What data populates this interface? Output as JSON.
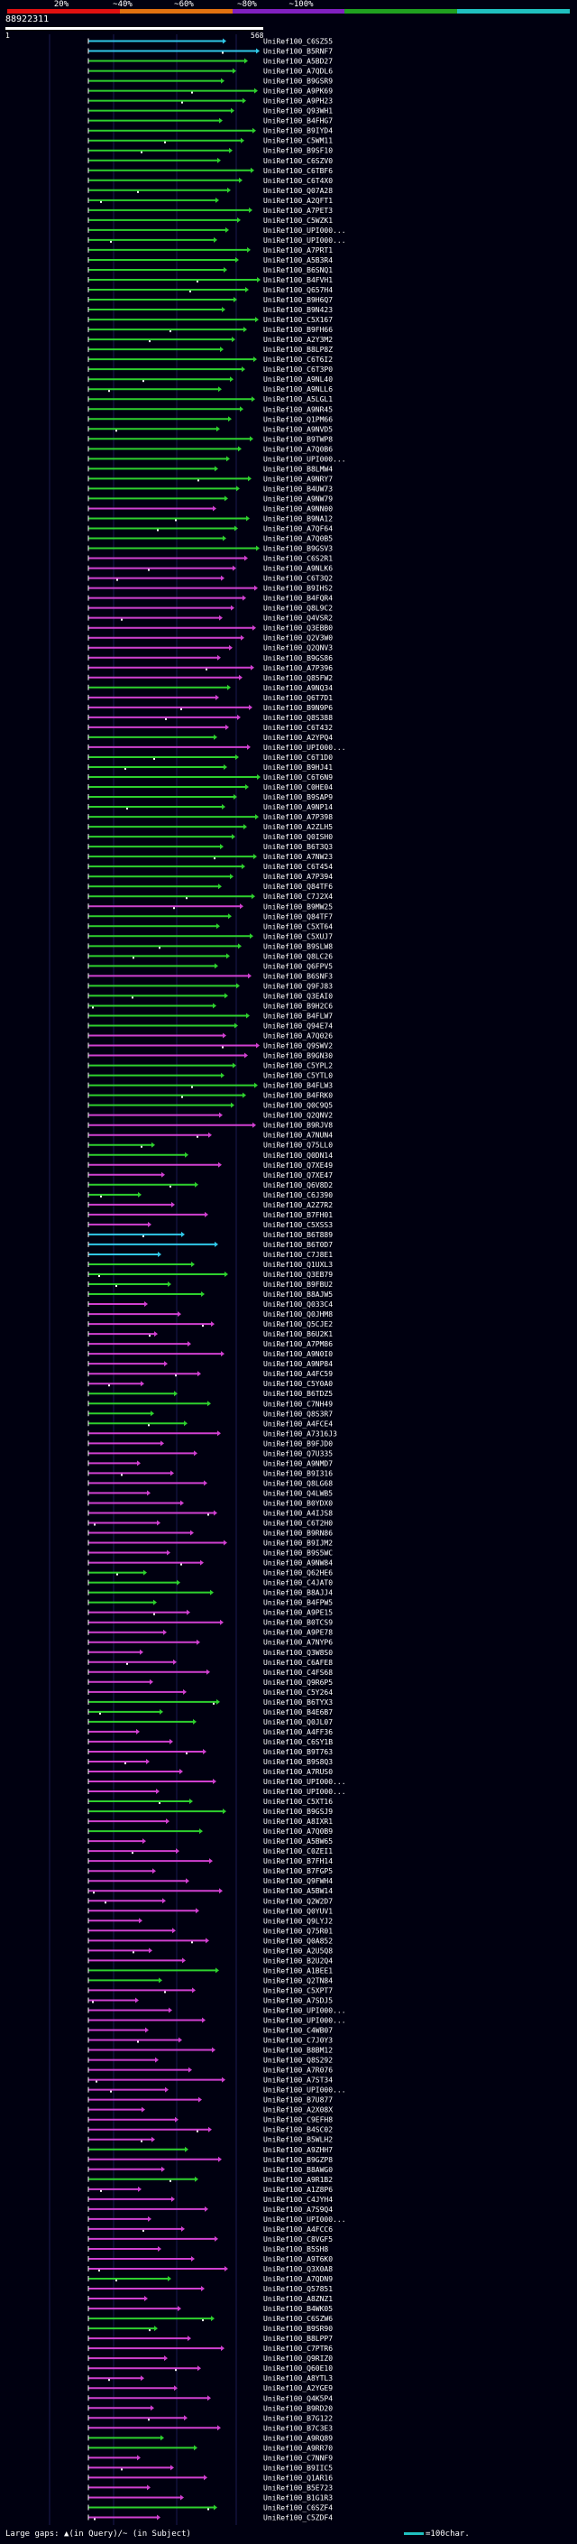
{
  "scale": {
    "labels": [
      "20%",
      "~40%",
      "~60%",
      "~80%",
      "~100%"
    ],
    "colors": [
      "#e01010",
      "#e07010",
      "#8020c0",
      "#20a020",
      "#20c0c0"
    ]
  },
  "query": {
    "id": "88922311",
    "start": "1",
    "end": "568"
  },
  "hit_colors": {
    "g": "#2ed02e",
    "m": "#d040d0",
    "c": "#30c8e8"
  },
  "hits": [
    {
      "label": "UniRef100_C6SZ55",
      "c": "c"
    },
    {
      "label": "UniRef100_B5RNF7",
      "c": "c"
    },
    {
      "label": "UniRef100_A5BD27",
      "c": "g"
    },
    {
      "label": "UniRef100_A7QDL6",
      "c": "g"
    },
    {
      "label": "UniRef100_B9GSR9",
      "c": "g"
    },
    {
      "label": "UniRef100_A9PK69",
      "c": "g"
    },
    {
      "label": "UniRef100_A9PH23",
      "c": "g"
    },
    {
      "label": "UniRef100_Q93WH1",
      "c": "g"
    },
    {
      "label": "UniRef100_B4FHG7",
      "c": "g"
    },
    {
      "label": "UniRef100_B9IYD4",
      "c": "g"
    },
    {
      "label": "UniRef100_C5WM11",
      "c": "g"
    },
    {
      "label": "UniRef100_B9SF10",
      "c": "g"
    },
    {
      "label": "UniRef100_C6SZV0",
      "c": "g"
    },
    {
      "label": "UniRef100_C6TBF6",
      "c": "g"
    },
    {
      "label": "UniRef100_C6T4X0",
      "c": "g"
    },
    {
      "label": "UniRef100_Q07A28",
      "c": "g"
    },
    {
      "label": "UniRef100_A2QFT1",
      "c": "g"
    },
    {
      "label": "UniRef100_A7PET3",
      "c": "g"
    },
    {
      "label": "UniRef100_C5WZK1",
      "c": "g"
    },
    {
      "label": "UniRef100_UPI000...",
      "c": "g"
    },
    {
      "label": "UniRef100_UPI000...",
      "c": "g"
    },
    {
      "label": "UniRef100_A7PRT1",
      "c": "g"
    },
    {
      "label": "UniRef100_A5B3R4",
      "c": "g"
    },
    {
      "label": "UniRef100_B6SNQ1",
      "c": "g"
    },
    {
      "label": "UniRef100_B4FVH1",
      "c": "g"
    },
    {
      "label": "UniRef100_Q657H4",
      "c": "g"
    },
    {
      "label": "UniRef100_B9H6Q7",
      "c": "g"
    },
    {
      "label": "UniRef100_B9N423",
      "c": "g"
    },
    {
      "label": "UniRef100_C5X167",
      "c": "g"
    },
    {
      "label": "UniRef100_B9FH66",
      "c": "g"
    },
    {
      "label": "UniRef100_A2Y3M2",
      "c": "g"
    },
    {
      "label": "UniRef100_B8LP8Z",
      "c": "g"
    },
    {
      "label": "UniRef100_C6T6I2",
      "c": "g"
    },
    {
      "label": "UniRef100_C6T3P0",
      "c": "g"
    },
    {
      "label": "UniRef100_A9NL40",
      "c": "g"
    },
    {
      "label": "UniRef100_A9NLL6",
      "c": "g"
    },
    {
      "label": "UniRef100_A5LGL1",
      "c": "g"
    },
    {
      "label": "UniRef100_A9NR45",
      "c": "g"
    },
    {
      "label": "UniRef100_Q1PM66",
      "c": "g"
    },
    {
      "label": "UniRef100_A9NVD5",
      "c": "g"
    },
    {
      "label": "UniRef100_B9TWP8",
      "c": "g"
    },
    {
      "label": "UniRef100_A7Q0B6",
      "c": "g"
    },
    {
      "label": "UniRef100_UPI000...",
      "c": "g"
    },
    {
      "label": "UniRef100_B8LMW4",
      "c": "g"
    },
    {
      "label": "UniRef100_A9NRY7",
      "c": "g"
    },
    {
      "label": "UniRef100_B4UW73",
      "c": "g"
    },
    {
      "label": "UniRef100_A9NW79",
      "c": "g"
    },
    {
      "label": "UniRef100_A9NN00",
      "c": "m"
    },
    {
      "label": "UniRef100_B9NA12",
      "c": "g"
    },
    {
      "label": "UniRef100_A7QF64",
      "c": "g"
    },
    {
      "label": "UniRef100_A7Q0B5",
      "c": "g"
    },
    {
      "label": "UniRef100_B9GSV3",
      "c": "g"
    },
    {
      "label": "UniRef100_C6S2R1",
      "c": "m"
    },
    {
      "label": "UniRef100_A9NLK6",
      "c": "m"
    },
    {
      "label": "UniRef100_C6T3Q2",
      "c": "m"
    },
    {
      "label": "UniRef100_B9IHS2",
      "c": "m"
    },
    {
      "label": "UniRef100_B4FQR4",
      "c": "m"
    },
    {
      "label": "UniRef100_Q8L9C2",
      "c": "m"
    },
    {
      "label": "UniRef100_Q4VSR2",
      "c": "m"
    },
    {
      "label": "UniRef100_Q3EBB0",
      "c": "m"
    },
    {
      "label": "UniRef100_Q2V3W0",
      "c": "m"
    },
    {
      "label": "UniRef100_Q2QNV3",
      "c": "m"
    },
    {
      "label": "UniRef100_B9GS86",
      "c": "m"
    },
    {
      "label": "UniRef100_A7P396",
      "c": "m"
    },
    {
      "label": "UniRef100_Q85FW2",
      "c": "m"
    },
    {
      "label": "UniRef100_A9NQ34",
      "c": "g"
    },
    {
      "label": "UniRef100_Q6T7D1",
      "c": "m"
    },
    {
      "label": "UniRef100_B9N9P6",
      "c": "m"
    },
    {
      "label": "UniRef100_Q8S388",
      "c": "m"
    },
    {
      "label": "UniRef100_C6T432",
      "c": "m"
    },
    {
      "label": "UniRef100_A2YPQ4",
      "c": "g"
    },
    {
      "label": "UniRef100_UPI000...",
      "c": "m"
    },
    {
      "label": "UniRef100_C6T1D0",
      "c": "g"
    },
    {
      "label": "UniRef100_B9HJ41",
      "c": "g"
    },
    {
      "label": "UniRef100_C6T6N9",
      "c": "g"
    },
    {
      "label": "UniRef100_C0HE04",
      "c": "g"
    },
    {
      "label": "UniRef100_B9SAP9",
      "c": "g"
    },
    {
      "label": "UniRef100_A9NP14",
      "c": "g"
    },
    {
      "label": "UniRef100_A7P398",
      "c": "g"
    },
    {
      "label": "UniRef100_A2ZLH5",
      "c": "g"
    },
    {
      "label": "UniRef100_Q0ISH0",
      "c": "g"
    },
    {
      "label": "UniRef100_B6T3Q3",
      "c": "g"
    },
    {
      "label": "UniRef100_A7NW23",
      "c": "g"
    },
    {
      "label": "UniRef100_C6T454",
      "c": "g"
    },
    {
      "label": "UniRef100_A7P394",
      "c": "g"
    },
    {
      "label": "UniRef100_Q84TF6",
      "c": "g"
    },
    {
      "label": "UniRef100_C7J2X4",
      "c": "g"
    },
    {
      "label": "UniRef100_B9MW25",
      "c": "m"
    },
    {
      "label": "UniRef100_Q84TF7",
      "c": "g"
    },
    {
      "label": "UniRef100_C5XT64",
      "c": "g"
    },
    {
      "label": "UniRef100_C5XUJ7",
      "c": "g"
    },
    {
      "label": "UniRef100_B9SLW8",
      "c": "g"
    },
    {
      "label": "UniRef100_Q8LC26",
      "c": "g"
    },
    {
      "label": "UniRef100_Q6FPV5",
      "c": "g"
    },
    {
      "label": "UniRef100_B6SNF3",
      "c": "m"
    },
    {
      "label": "UniRef100_Q9FJ83",
      "c": "g"
    },
    {
      "label": "UniRef100_Q3EAI0",
      "c": "g"
    },
    {
      "label": "UniRef100_B9H2C6",
      "c": "g"
    },
    {
      "label": "UniRef100_B4FLW7",
      "c": "g"
    },
    {
      "label": "UniRef100_Q94E74",
      "c": "g"
    },
    {
      "label": "UniRef100_A7Q026",
      "c": "m"
    },
    {
      "label": "UniRef100_Q9SWV2",
      "c": "m"
    },
    {
      "label": "UniRef100_B9GN30",
      "c": "m"
    },
    {
      "label": "UniRef100_C5YPL2",
      "c": "g"
    },
    {
      "label": "UniRef100_C5YTL0",
      "c": "g"
    },
    {
      "label": "UniRef100_B4FLW3",
      "c": "g"
    },
    {
      "label": "UniRef100_B4FRK0",
      "c": "g"
    },
    {
      "label": "UniRef100_Q0C9Q5",
      "c": "g"
    },
    {
      "label": "UniRef100_Q2QNV2",
      "c": "m"
    },
    {
      "label": "UniRef100_B9RJV8",
      "c": "m"
    },
    {
      "label": "UniRef100_A7NUN4",
      "c": "m"
    },
    {
      "label": "UniRef100_Q75LL0",
      "c": "g"
    },
    {
      "label": "UniRef100_Q0DN14",
      "c": "g"
    },
    {
      "label": "UniRef100_Q7XE49",
      "c": "m"
    },
    {
      "label": "UniRef100_Q7XE47",
      "c": "m"
    },
    {
      "label": "UniRef100_Q6V8D2",
      "c": "g"
    },
    {
      "label": "UniRef100_C6J390",
      "c": "g"
    },
    {
      "label": "UniRef100_A2Z7R2",
      "c": "m"
    },
    {
      "label": "UniRef100_B7FH01",
      "c": "m"
    },
    {
      "label": "UniRef100_C5XSS3",
      "c": "m"
    },
    {
      "label": "UniRef100_B6T889",
      "c": "c"
    },
    {
      "label": "UniRef100_B6T0D7",
      "c": "c"
    },
    {
      "label": "UniRef100_C7J8E1",
      "c": "c"
    },
    {
      "label": "UniRef100_Q1UXL3",
      "c": "g"
    },
    {
      "label": "UniRef100_Q3EB79",
      "c": "g"
    },
    {
      "label": "UniRef100_B9FBU2",
      "c": "g"
    },
    {
      "label": "UniRef100_B8AJW5",
      "c": "g"
    },
    {
      "label": "UniRef100_Q033C4",
      "c": "m"
    },
    {
      "label": "UniRef100_Q0JHM8",
      "c": "m"
    },
    {
      "label": "UniRef100_Q5CJE2",
      "c": "m"
    },
    {
      "label": "UniRef100_B6U2K1",
      "c": "m"
    },
    {
      "label": "UniRef100_A7PM86",
      "c": "m"
    },
    {
      "label": "UniRef100_A9N0I0",
      "c": "m"
    },
    {
      "label": "UniRef100_A9NP84",
      "c": "m"
    },
    {
      "label": "UniRef100_A4FC59",
      "c": "m"
    },
    {
      "label": "UniRef100_C5Y0A0",
      "c": "m"
    },
    {
      "label": "UniRef100_B6TDZ5",
      "c": "g"
    },
    {
      "label": "UniRef100_C7NH49",
      "c": "g"
    },
    {
      "label": "UniRef100_Q8S3R7",
      "c": "g"
    },
    {
      "label": "UniRef100_A4FCE4",
      "c": "g"
    },
    {
      "label": "UniRef100_A7316J3",
      "c": "m"
    },
    {
      "label": "UniRef100_B9FJD0",
      "c": "m"
    },
    {
      "label": "UniRef100_Q7U335",
      "c": "m"
    },
    {
      "label": "UniRef100_A9NMD7",
      "c": "m"
    },
    {
      "label": "UniRef100_B9I316",
      "c": "m"
    },
    {
      "label": "UniRef100_Q8LG68",
      "c": "m"
    },
    {
      "label": "UniRef100_Q4LWB5",
      "c": "m"
    },
    {
      "label": "UniRef100_B0YDX0",
      "c": "m"
    },
    {
      "label": "UniRef100_A4IJS8",
      "c": "m"
    },
    {
      "label": "UniRef100_C6T2H0",
      "c": "m"
    },
    {
      "label": "UniRef100_B9RN86",
      "c": "m"
    },
    {
      "label": "UniRef100_B9IJM2",
      "c": "m"
    },
    {
      "label": "UniRef100_B9S5WC",
      "c": "m"
    },
    {
      "label": "UniRef100_A9NW84",
      "c": "m"
    },
    {
      "label": "UniRef100_Q62HE6",
      "c": "g"
    },
    {
      "label": "UniRef100_C4JAT0",
      "c": "g"
    },
    {
      "label": "UniRef100_B8AJJ4",
      "c": "g"
    },
    {
      "label": "UniRef100_B4FPW5",
      "c": "g"
    },
    {
      "label": "UniRef100_A9PE15",
      "c": "m"
    },
    {
      "label": "UniRef100_B0TCS9",
      "c": "m"
    },
    {
      "label": "UniRef100_A9PE78",
      "c": "m"
    },
    {
      "label": "UniRef100_A7NYP6",
      "c": "m"
    },
    {
      "label": "UniRef100_Q3W8S0",
      "c": "m"
    },
    {
      "label": "UniRef100_C6AFE8",
      "c": "m"
    },
    {
      "label": "UniRef100_C4FS68",
      "c": "m"
    },
    {
      "label": "UniRef100_Q9R6P5",
      "c": "m"
    },
    {
      "label": "UniRef100_C5Y264",
      "c": "m"
    },
    {
      "label": "UniRef100_B6TYX3",
      "c": "g"
    },
    {
      "label": "UniRef100_B4E6B7",
      "c": "g"
    },
    {
      "label": "UniRef100_Q0JL07",
      "c": "g"
    },
    {
      "label": "UniRef100_A4FF36",
      "c": "m"
    },
    {
      "label": "UniRef100_C6SY1B",
      "c": "m"
    },
    {
      "label": "UniRef100_B9T763",
      "c": "m"
    },
    {
      "label": "UniRef100_B9S8Q3",
      "c": "m"
    },
    {
      "label": "UniRef100_A7RUS0",
      "c": "m"
    },
    {
      "label": "UniRef100_UPI000...",
      "c": "m"
    },
    {
      "label": "UniRef100_UPI000...",
      "c": "m"
    },
    {
      "label": "UniRef100_C5XT16",
      "c": "g"
    },
    {
      "label": "UniRef100_B9GSJ9",
      "c": "g"
    },
    {
      "label": "UniRef100_A8IXR1",
      "c": "m"
    },
    {
      "label": "UniRef100_A7Q0B9",
      "c": "g"
    },
    {
      "label": "UniRef100_A5BW65",
      "c": "m"
    },
    {
      "label": "UniRef100_C0ZEI1",
      "c": "m"
    },
    {
      "label": "UniRef100_B7FH14",
      "c": "m"
    },
    {
      "label": "UniRef100_B7FGP5",
      "c": "m"
    },
    {
      "label": "UniRef100_Q9FWH4",
      "c": "m"
    },
    {
      "label": "UniRef100_A5BW14",
      "c": "m"
    },
    {
      "label": "UniRef100_Q2W2D7",
      "c": "m"
    },
    {
      "label": "UniRef100_Q0YUV1",
      "c": "m"
    },
    {
      "label": "UniRef100_Q9LYJ2",
      "c": "m"
    },
    {
      "label": "UniRef100_Q75R01",
      "c": "m"
    },
    {
      "label": "UniRef100_Q0A852",
      "c": "m"
    },
    {
      "label": "UniRef100_A2U5Q8",
      "c": "m"
    },
    {
      "label": "UniRef100_B2U2Q4",
      "c": "m"
    },
    {
      "label": "UniRef100_A1BEE1",
      "c": "g"
    },
    {
      "label": "UniRef100_Q2TN84",
      "c": "g"
    },
    {
      "label": "UniRef100_C5XPT7",
      "c": "m"
    },
    {
      "label": "UniRef100_A7SDJ5",
      "c": "m"
    },
    {
      "label": "UniRef100_UPI000...",
      "c": "m"
    },
    {
      "label": "UniRef100_UPI000...",
      "c": "m"
    },
    {
      "label": "UniRef100_C4WB07",
      "c": "m"
    },
    {
      "label": "UniRef100_C7J0Y3",
      "c": "m"
    },
    {
      "label": "UniRef100_B8BM12",
      "c": "m"
    },
    {
      "label": "UniRef100_Q8S292",
      "c": "m"
    },
    {
      "label": "UniRef100_A7R076",
      "c": "m"
    },
    {
      "label": "UniRef100_A7ST34",
      "c": "m"
    },
    {
      "label": "UniRef100_UPI000...",
      "c": "m"
    },
    {
      "label": "UniRef100_B7U877",
      "c": "m"
    },
    {
      "label": "UniRef100_A2X08X",
      "c": "m"
    },
    {
      "label": "UniRef100_C9EFH8",
      "c": "m"
    },
    {
      "label": "UniRef100_B4SC02",
      "c": "m"
    },
    {
      "label": "UniRef100_B5WLH2",
      "c": "m"
    },
    {
      "label": "UniRef100_A9ZHH7",
      "c": "g"
    },
    {
      "label": "UniRef100_B9GZP8",
      "c": "m"
    },
    {
      "label": "UniRef100_B8AWG0",
      "c": "m"
    },
    {
      "label": "UniRef100_A9R1B2",
      "c": "g"
    },
    {
      "label": "UniRef100_A1Z8P6",
      "c": "m"
    },
    {
      "label": "UniRef100_C4JYH4",
      "c": "m"
    },
    {
      "label": "UniRef100_A7S9Q4",
      "c": "m"
    },
    {
      "label": "UniRef100_UPI000...",
      "c": "m"
    },
    {
      "label": "UniRef100_A4FCC6",
      "c": "m"
    },
    {
      "label": "UniRef100_C8VGF5",
      "c": "m"
    },
    {
      "label": "UniRef100_B5SH8",
      "c": "m"
    },
    {
      "label": "UniRef100_A9T6K0",
      "c": "m"
    },
    {
      "label": "UniRef100_Q3X0A8",
      "c": "m"
    },
    {
      "label": "UniRef100_A7QDN9",
      "c": "g"
    },
    {
      "label": "UniRef100_Q57851",
      "c": "m"
    },
    {
      "label": "UniRef100_A8ZNZ1",
      "c": "m"
    },
    {
      "label": "UniRef100_B4WK05",
      "c": "m"
    },
    {
      "label": "UniRef100_C6SZW6",
      "c": "g"
    },
    {
      "label": "UniRef100_B9SR90",
      "c": "g"
    },
    {
      "label": "UniRef100_B8LPP7",
      "c": "m"
    },
    {
      "label": "UniRef100_C7PTR6",
      "c": "m"
    },
    {
      "label": "UniRef100_Q9RIZ0",
      "c": "m"
    },
    {
      "label": "UniRef100_Q60E10",
      "c": "m"
    },
    {
      "label": "UniRef100_A8YTL3",
      "c": "m"
    },
    {
      "label": "UniRef100_A2YGE9",
      "c": "m"
    },
    {
      "label": "UniRef100_Q4K5P4",
      "c": "m"
    },
    {
      "label": "UniRef100_B9RD20",
      "c": "m"
    },
    {
      "label": "UniRef100_B7G122",
      "c": "m"
    },
    {
      "label": "UniRef100_B7C3E3",
      "c": "m"
    },
    {
      "label": "UniRef100_A9RQ89",
      "c": "g"
    },
    {
      "label": "UniRef100_A9RR70",
      "c": "g"
    },
    {
      "label": "UniRef100_C7NNF9",
      "c": "m"
    },
    {
      "label": "UniRef100_B9IIC5",
      "c": "m"
    },
    {
      "label": "UniRef100_Q1AR16",
      "c": "m"
    },
    {
      "label": "UniRef100_B5E723",
      "c": "m"
    },
    {
      "label": "UniRef100_B1G1R3",
      "c": "m"
    },
    {
      "label": "UniRef100_C6SZF4",
      "c": "g"
    },
    {
      "label": "UniRef100_C5ZDF4",
      "c": "m"
    }
  ],
  "legend": {
    "key": "Large gaps: ▲(in Query)/~ (in Subject)",
    "scale": "=100char."
  }
}
